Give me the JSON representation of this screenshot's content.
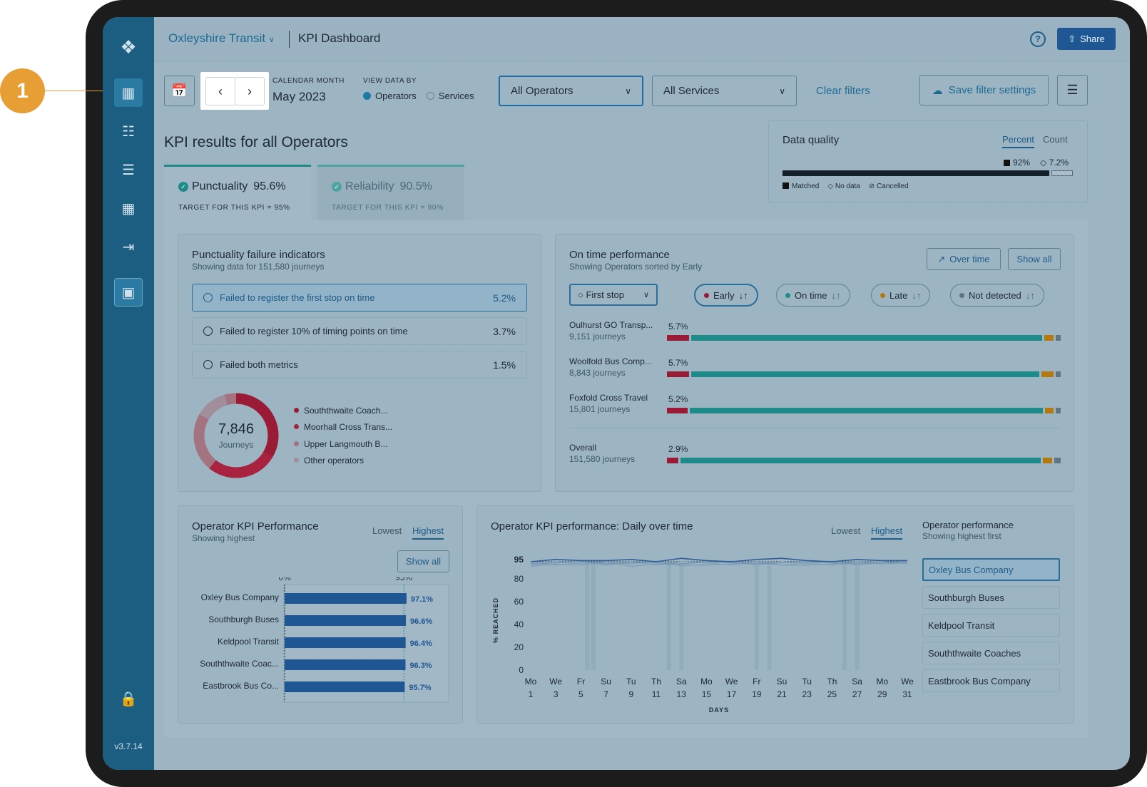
{
  "header": {
    "brand": "Oxleyshire Transit",
    "page_title": "KPI Dashboard",
    "share_label": "Share",
    "help_label": "?"
  },
  "sidebar": {
    "version": "v3.7.14",
    "items": [
      "dashboard-icon",
      "vehicle-icon",
      "list-icon",
      "grid-icon",
      "logout-icon",
      "app-icon"
    ]
  },
  "callout": {
    "number": "1"
  },
  "filters": {
    "calendar_label": "CALENDAR MONTH",
    "calendar_value": "May 2023",
    "view_label": "VIEW DATA BY",
    "view_options": [
      "Operators",
      "Services"
    ],
    "operators_select": "All Operators",
    "services_select": "All Services",
    "clear_label": "Clear filters",
    "save_label": "Save filter settings"
  },
  "kpi": {
    "heading": "KPI results for all Operators",
    "tabs": [
      {
        "name": "Punctuality",
        "value": "95.6%",
        "target": "TARGET FOR THIS KPI = 95%"
      },
      {
        "name": "Reliability",
        "value": "90.5%",
        "target": "TARGET FOR THIS KPI = 90%"
      }
    ]
  },
  "data_quality": {
    "title": "Data quality",
    "toggle": [
      "Percent",
      "Count"
    ],
    "matched_value": "92%",
    "nodata_value": "7.2%",
    "matched_pct": 92,
    "nodata_pct": 7.2,
    "legend": [
      "Matched",
      "No data",
      "Cancelled"
    ]
  },
  "punctuality_failures": {
    "title": "Punctuality failure indicators",
    "subtitle": "Showing data for 151,580 journeys",
    "rows": [
      {
        "label": "Failed to register the first stop on time",
        "value": "5.2%"
      },
      {
        "label": "Failed to register 10% of timing points on time",
        "value": "3.7%"
      },
      {
        "label": "Failed both metrics",
        "value": "1.5%"
      }
    ],
    "donut": {
      "total": "7,846",
      "unit": "Journeys",
      "legend": [
        "Souththwaite Coach...",
        "Moorhall Cross Trans...",
        "Upper Langmouth B...",
        "Other operators"
      ]
    }
  },
  "on_time": {
    "title": "On time performance",
    "subtitle": "Showing Operators sorted by Early",
    "over_time_label": "Over time",
    "show_all_label": "Show all",
    "stop_select": "First stop",
    "pills": [
      "Early",
      "On time",
      "Late",
      "Not detected"
    ],
    "rows": [
      {
        "name": "Oulhurst GO Transp...",
        "journeys": "9,151 journeys",
        "early": "5.7%",
        "early_pct": 5.7,
        "ontime_pct": 89.3,
        "late_pct": 2.5,
        "nd_pct": 1.2
      },
      {
        "name": "Woolfold Bus Comp...",
        "journeys": "8,843 journeys",
        "early": "5.7%",
        "early_pct": 5.7,
        "ontime_pct": 88.6,
        "late_pct": 3.2,
        "nd_pct": 1.2
      },
      {
        "name": "Foxfold Cross Travel",
        "journeys": "15,801 journeys",
        "early": "5.2%",
        "early_pct": 5.2,
        "ontime_pct": 90.1,
        "late_pct": 2.2,
        "nd_pct": 1.2
      },
      {
        "name": "Overall",
        "journeys": "151,580 journeys",
        "early": "2.9%",
        "early_pct": 2.9,
        "ontime_pct": 92.0,
        "late_pct": 2.4,
        "nd_pct": 1.6
      }
    ]
  },
  "operator_kpi": {
    "title": "Operator KPI Performance",
    "subtitle": "Showing highest",
    "toggle": [
      "Lowest",
      "Highest"
    ],
    "show_all_label": "Show all",
    "axis_labels": [
      "0%",
      "95%"
    ]
  },
  "daily": {
    "title": "Operator KPI performance: Daily over time",
    "toggle": [
      "Lowest",
      "Highest"
    ],
    "list_title": "Operator performance",
    "list_subtitle": "Showing highest first",
    "operators": [
      "Oxley Bus Company",
      "Southburgh Buses",
      "Keldpool Transit",
      "Souththwaite Coaches",
      "Eastbrook Bus Company"
    ]
  },
  "chart_data": [
    {
      "type": "bar",
      "categories": [
        "Oxley Bus Company",
        "Southburgh Buses",
        "Keldpool Transit",
        "Souththwaite Coac...",
        "Eastbrook Bus Co..."
      ],
      "values": [
        97.1,
        96.6,
        96.4,
        96.3,
        95.7
      ],
      "value_labels": [
        "97.1%",
        "96.6%",
        "96.4%",
        "96.3%",
        "95.7%"
      ],
      "xlim": [
        0,
        100
      ],
      "reference_line": 95
    },
    {
      "type": "line",
      "x": [
        "Mo 1",
        "We 3",
        "Fr 5",
        "Su 7",
        "Tu 9",
        "Th 11",
        "Sa 13",
        "Mo 15",
        "We 17",
        "Fr 19",
        "Su 21",
        "Tu 23",
        "Th 25",
        "Sa 27",
        "Mo 29",
        "We 31"
      ],
      "x_days": [
        "Mo",
        "We",
        "Fr",
        "Su",
        "Tu",
        "Th",
        "Sa",
        "Mo",
        "We",
        "Fr",
        "Su",
        "Tu",
        "Th",
        "Sa",
        "Mo",
        "We"
      ],
      "x_dates": [
        "1",
        "3",
        "5",
        "7",
        "9",
        "11",
        "13",
        "15",
        "17",
        "19",
        "21",
        "23",
        "25",
        "27",
        "29",
        "31"
      ],
      "xlabel": "DAYS",
      "ylabel": "% REACHED",
      "y_ticks": [
        "0",
        "20",
        "40",
        "60",
        "80",
        "95"
      ],
      "ylim": [
        0,
        100
      ],
      "series": [
        {
          "values": [
            95,
            97,
            96,
            96,
            97,
            95,
            98,
            96,
            95,
            97,
            98,
            96,
            95,
            97,
            96,
            96
          ]
        },
        {
          "values": [
            93,
            94,
            95,
            93,
            94,
            94,
            93,
            95,
            94,
            93,
            94,
            95,
            94,
            93,
            94,
            95
          ]
        },
        {
          "values": [
            91,
            93,
            92,
            95,
            91,
            93,
            92,
            92,
            93,
            95,
            92,
            92,
            93,
            95,
            93,
            94
          ]
        },
        {
          "values": [
            94,
            92,
            94,
            92,
            95,
            92,
            95,
            94,
            92,
            94,
            92,
            94,
            92,
            94,
            95,
            93
          ]
        },
        {
          "values": [
            92,
            95,
            93,
            94,
            93,
            96,
            91,
            93,
            96,
            92,
            95,
            93,
            96,
            92,
            94,
            95
          ]
        }
      ]
    }
  ]
}
